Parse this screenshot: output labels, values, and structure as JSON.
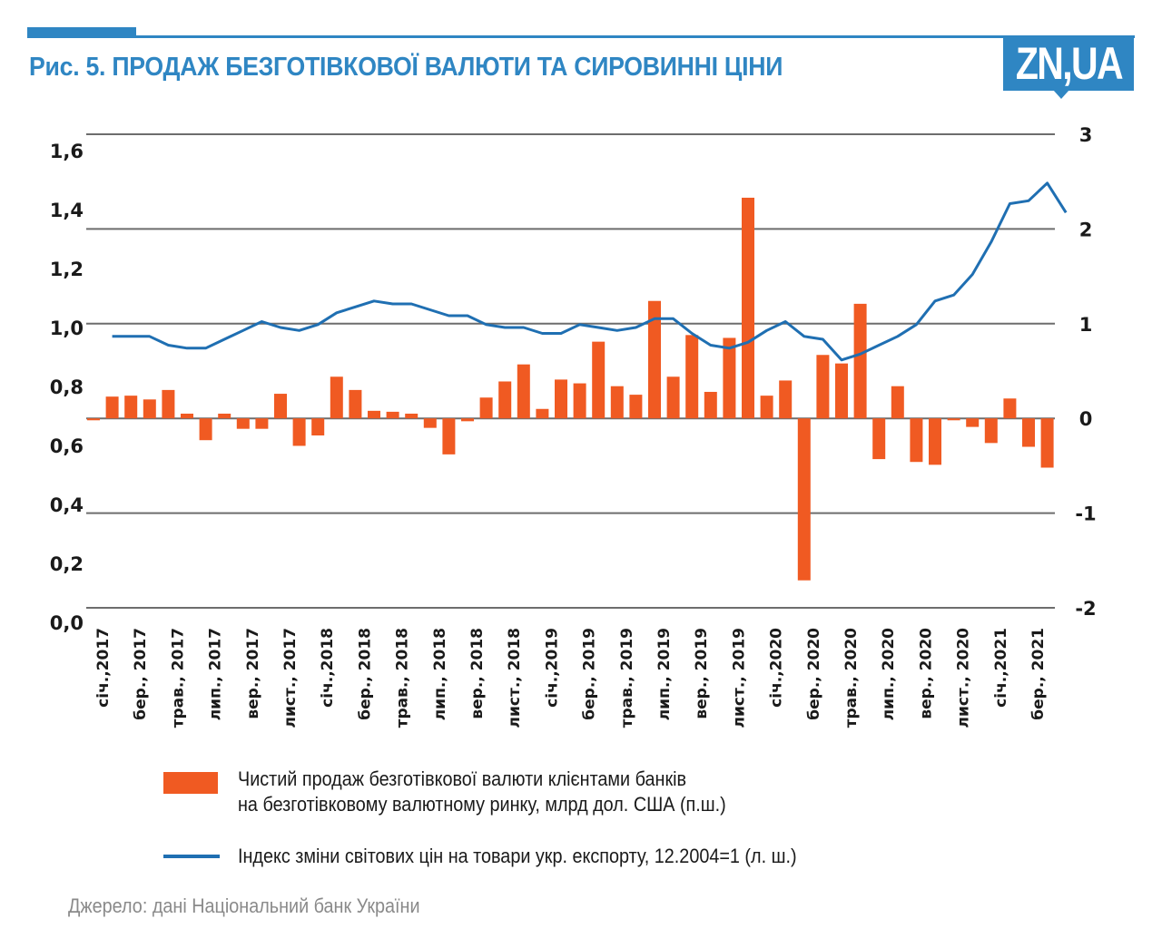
{
  "header": {
    "title": "Рис. 5.  ПРОДАЖ БЕЗГОТІВКОВОЇ ВАЛЮТИ ТА СИРОВИННІ ЦІНИ",
    "logo": "ZN,UA",
    "brand_color": "#2f86c3"
  },
  "chart_data": {
    "type": "bar+line",
    "title": "Рис. 5. ПРОДАЖ БЕЗГОТІВКОВОЇ ВАЛЮТИ ТА СИРОВИННІ ЦІНИ",
    "grid": true,
    "legend_position": "bottom",
    "left_axis": {
      "ticks": [
        "1,6",
        "1,4",
        "1,2",
        "1,0",
        "0,8",
        "0,6",
        "0,4",
        "0,2",
        "0,0"
      ],
      "range": [
        0.0,
        1.6
      ]
    },
    "right_axis": {
      "ticks": [
        "3",
        "2",
        "1",
        "0",
        "-1",
        "-2"
      ],
      "range": [
        -2,
        3
      ]
    },
    "x_tick_labels": [
      "січ.,2017",
      "бер., 2017",
      "трав., 2017",
      "лип., 2017",
      "вер., 2017",
      "лист., 2017",
      "січ.,2018",
      "бер., 2018",
      "трав., 2018",
      "лип., 2018",
      "вер., 2018",
      "лист., 2018",
      "січ.,2019",
      "бер., 2019",
      "трав., 2019",
      "лип., 2019",
      "вер., 2019",
      "лист., 2019",
      "січ.,2020",
      "бер., 2020",
      "трав., 2020",
      "лип., 2020",
      "вер., 2020",
      "лист., 2020",
      "січ.,2021",
      "бер., 2021"
    ],
    "series": [
      {
        "name": "Чистий продаж безготівкової валюти клієнтами банків на безготівковому валютному ринку, млрд дол. США (п.ш.)",
        "type": "bar",
        "axis": "right",
        "color": "#f05a22",
        "values": [
          -0.02,
          0.23,
          0.24,
          0.2,
          0.3,
          0.05,
          -0.23,
          0.05,
          -0.11,
          -0.11,
          0.26,
          -0.29,
          -0.18,
          0.44,
          0.3,
          0.08,
          0.07,
          0.05,
          -0.1,
          -0.38,
          -0.03,
          0.22,
          0.39,
          0.57,
          0.1,
          0.41,
          0.37,
          0.81,
          0.34,
          0.25,
          1.24,
          0.44,
          0.88,
          0.28,
          0.85,
          2.33,
          0.24,
          0.4,
          -1.71,
          0.67,
          0.58,
          1.21,
          -0.43,
          0.34,
          -0.46,
          -0.49,
          -0.02,
          -0.09,
          -0.26,
          0.21,
          -0.3,
          -0.52
        ]
      },
      {
        "name": "Індекс зміни світових цін на товари укр. експорту, 12.2004=1 (л. ш.)",
        "type": "line",
        "axis": "left",
        "color": "#1f6fb2",
        "start_index": 1,
        "values": [
          0.97,
          0.97,
          0.97,
          0.94,
          0.93,
          0.93,
          0.96,
          0.99,
          1.02,
          1.0,
          0.99,
          1.01,
          1.05,
          1.07,
          1.09,
          1.08,
          1.08,
          1.06,
          1.04,
          1.04,
          1.01,
          1.0,
          1.0,
          0.98,
          0.98,
          1.01,
          1.0,
          0.99,
          1.0,
          1.03,
          1.03,
          0.98,
          0.94,
          0.93,
          0.95,
          0.99,
          1.02,
          0.97,
          0.96,
          0.89,
          0.91,
          0.94,
          0.97,
          1.01,
          1.09,
          1.11,
          1.18,
          1.29,
          1.42,
          1.43,
          1.49,
          1.39
        ]
      }
    ]
  },
  "legend": {
    "bar_line1": "Чистий продаж безготівкової валюти клієнтами банків",
    "bar_line2": "на безготівковому валютному ринку, млрд дол. США (п.ш.)",
    "line_label": "Індекс зміни світових цін на товари укр. експорту, 12.2004=1 (л. ш.)"
  },
  "source": "Джерело: дані Національний банк України"
}
